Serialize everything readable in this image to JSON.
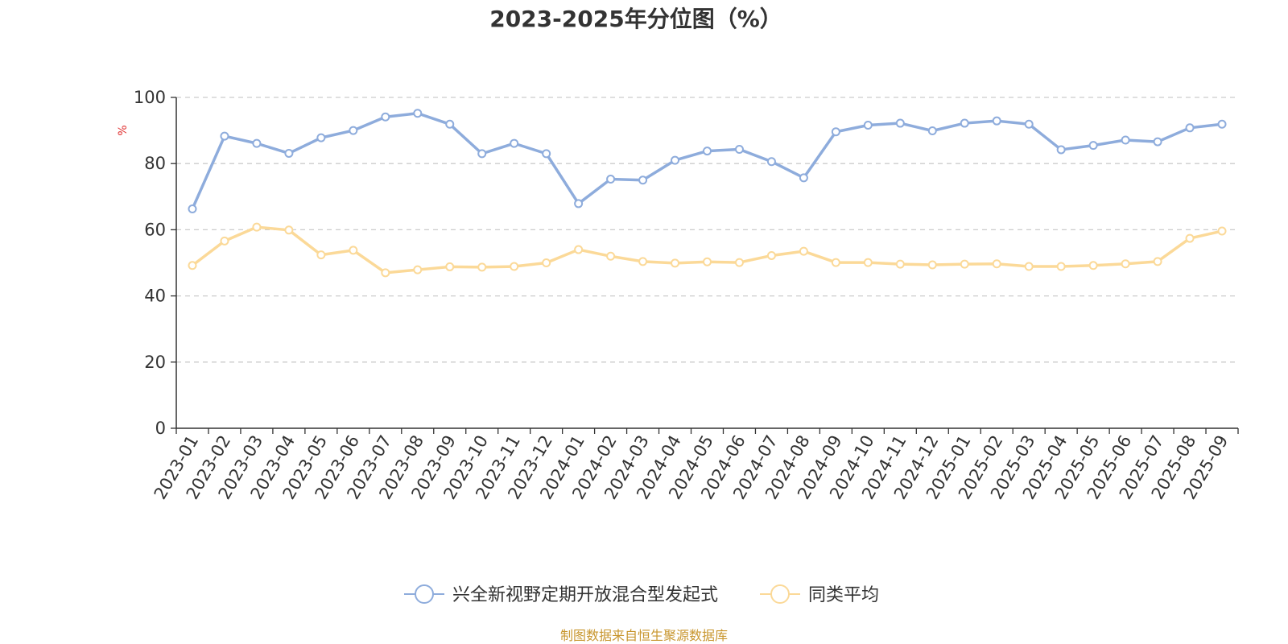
{
  "chart_data": {
    "type": "line",
    "title": "2023-2025年分位图（%）",
    "ylabel": "%",
    "ylim": [
      0,
      100
    ],
    "yticks": [
      0,
      20,
      40,
      60,
      80,
      100
    ],
    "grid": true,
    "legend_position": "bottom",
    "categories": [
      "2023-01",
      "2023-02",
      "2023-03",
      "2023-04",
      "2023-05",
      "2023-06",
      "2023-07",
      "2023-08",
      "2023-09",
      "2023-10",
      "2023-11",
      "2023-12",
      "2024-01",
      "2024-02",
      "2024-03",
      "2024-04",
      "2024-05",
      "2024-06",
      "2024-07",
      "2024-08",
      "2024-09",
      "2024-10",
      "2024-11",
      "2024-12",
      "2025-01",
      "2025-02",
      "2025-03",
      "2025-04",
      "2025-05",
      "2025-06",
      "2025-07",
      "2025-08",
      "2025-09"
    ],
    "series": [
      {
        "name": "兴全新视野定期开放混合型发起式",
        "color": "#8eacdc",
        "values": [
          66.3,
          88.3,
          86.1,
          83.1,
          87.8,
          90.0,
          94.1,
          95.2,
          91.9,
          83.0,
          86.1,
          83.0,
          67.9,
          75.3,
          75.0,
          81.0,
          83.8,
          84.3,
          80.6,
          75.7,
          89.6,
          91.6,
          92.2,
          89.9,
          92.2,
          92.9,
          91.9,
          84.2,
          85.5,
          87.1,
          86.6,
          90.8,
          91.9
        ]
      },
      {
        "name": "同类平均",
        "color": "#fbd998",
        "values": [
          49.2,
          56.6,
          60.8,
          59.9,
          52.4,
          53.8,
          47.0,
          47.9,
          48.8,
          48.7,
          48.9,
          50.0,
          54.0,
          52.0,
          50.4,
          49.9,
          50.3,
          50.1,
          52.2,
          53.5,
          50.1,
          50.1,
          49.6,
          49.4,
          49.6,
          49.7,
          48.9,
          48.9,
          49.2,
          49.7,
          50.4,
          57.4,
          59.6
        ]
      }
    ]
  },
  "source": {
    "text": "制图数据来自恒生聚源数据库",
    "color": "#c8962e"
  },
  "unit_color": "#e03030"
}
